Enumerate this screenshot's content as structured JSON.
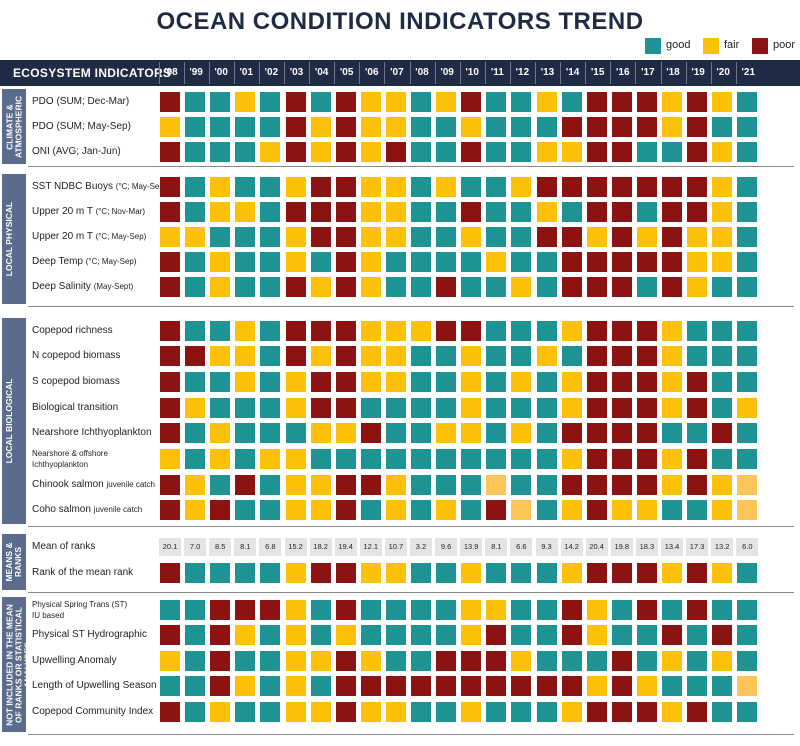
{
  "title": "OCEAN CONDITION INDICATORS TREND",
  "legend": [
    {
      "key": "good",
      "label": "good",
      "color": "#1e9394"
    },
    {
      "key": "fair",
      "label": "fair",
      "color": "#fec109"
    },
    {
      "key": "poor",
      "label": "poor",
      "color": "#8b1412"
    }
  ],
  "header_label": "ECOSYSTEM INDICATORS",
  "colors": {
    "good": "#1e9394",
    "fair": "#fec109",
    "poor": "#8b1412",
    "fair_light": "#fdc557",
    "header": "#1f2a44",
    "group_band": "#5a6b8c",
    "value_cell": "#e4e4e4"
  },
  "chart_data": {
    "type": "heatmap",
    "title": "OCEAN CONDITION INDICATORS TREND",
    "legend_placement": "top-right",
    "categories": [
      "good",
      "fair",
      "poor"
    ],
    "years": [
      "'98",
      "'99",
      "'00",
      "'01",
      "'02",
      "'03",
      "'04",
      "'05",
      "'06",
      "'07",
      "'08",
      "'09",
      "'10",
      "'11",
      "'12",
      "'13",
      "'14",
      "'15",
      "'16",
      "'17",
      "'18",
      "'19",
      "'20",
      "'21"
    ],
    "groups": [
      {
        "name": "CLIMATE & ATMOSPHERIC",
        "rows": [
          {
            "label": "PDO (SUM; Dec-Mar)",
            "sub": "",
            "cells": [
              "poor",
              "good",
              "good",
              "fair",
              "good",
              "poor",
              "good",
              "poor",
              "fair",
              "fair",
              "good",
              "fair",
              "poor",
              "good",
              "good",
              "fair",
              "good",
              "poor",
              "poor",
              "poor",
              "fair",
              "poor",
              "fair",
              "good"
            ]
          },
          {
            "label": "PDO (SUM; May-Sep)",
            "sub": "",
            "cells": [
              "fair",
              "good",
              "good",
              "good",
              "good",
              "poor",
              "fair",
              "poor",
              "fair",
              "fair",
              "good",
              "good",
              "fair",
              "good",
              "good",
              "good",
              "poor",
              "poor",
              "poor",
              "poor",
              "fair",
              "poor",
              "good",
              "good"
            ]
          },
          {
            "label": "ONI (AVG; Jan-Jun)",
            "sub": "",
            "cells": [
              "poor",
              "good",
              "good",
              "good",
              "fair",
              "poor",
              "fair",
              "poor",
              "fair",
              "poor",
              "good",
              "good",
              "poor",
              "good",
              "good",
              "fair",
              "fair",
              "poor",
              "poor",
              "good",
              "good",
              "poor",
              "fair",
              "good"
            ]
          }
        ]
      },
      {
        "name": "LOCAL PHYSICAL",
        "rows": [
          {
            "label": "SST NDBC Buoys",
            "sub": "(°C; May-Sep)",
            "cells": [
              "poor",
              "good",
              "fair",
              "good",
              "good",
              "fair",
              "poor",
              "poor",
              "fair",
              "fair",
              "good",
              "fair",
              "good",
              "good",
              "fair",
              "poor",
              "poor",
              "poor",
              "poor",
              "poor",
              "poor",
              "poor",
              "fair",
              "good"
            ]
          },
          {
            "label": "Upper 20 m T",
            "sub": "(°C; Nov-Mar)",
            "cells": [
              "poor",
              "good",
              "fair",
              "fair",
              "good",
              "poor",
              "poor",
              "poor",
              "fair",
              "fair",
              "good",
              "good",
              "poor",
              "good",
              "good",
              "fair",
              "good",
              "poor",
              "poor",
              "good",
              "poor",
              "poor",
              "fair",
              "good"
            ]
          },
          {
            "label": "Upper 20 m T",
            "sub": "(°C; May-Sep)",
            "cells": [
              "fair",
              "fair",
              "good",
              "good",
              "good",
              "fair",
              "poor",
              "poor",
              "fair",
              "fair",
              "good",
              "good",
              "fair",
              "good",
              "good",
              "poor",
              "poor",
              "fair",
              "poor",
              "fair",
              "poor",
              "fair",
              "fair",
              "good"
            ]
          },
          {
            "label": "Deep Temp",
            "sub": "(°C; May-Sep)",
            "cells": [
              "poor",
              "good",
              "fair",
              "good",
              "good",
              "fair",
              "good",
              "poor",
              "fair",
              "good",
              "good",
              "good",
              "good",
              "fair",
              "good",
              "good",
              "poor",
              "poor",
              "poor",
              "poor",
              "poor",
              "fair",
              "fair",
              "good"
            ]
          },
          {
            "label": "Deep Salinity",
            "sub": "(May-Sept)",
            "cells": [
              "poor",
              "good",
              "fair",
              "good",
              "good",
              "poor",
              "fair",
              "poor",
              "fair",
              "good",
              "good",
              "poor",
              "good",
              "good",
              "fair",
              "good",
              "poor",
              "poor",
              "poor",
              "good",
              "poor",
              "fair",
              "good",
              "good"
            ]
          }
        ]
      },
      {
        "name": "LOCAL BIOLOGICAL",
        "rows": [
          {
            "label": "Copepod richness",
            "sub": "",
            "cells": [
              "poor",
              "good",
              "good",
              "fair",
              "good",
              "poor",
              "poor",
              "poor",
              "fair",
              "fair",
              "fair",
              "poor",
              "poor",
              "good",
              "good",
              "good",
              "fair",
              "poor",
              "poor",
              "poor",
              "fair",
              "good",
              "good",
              "good"
            ]
          },
          {
            "label": "N copepod biomass",
            "sub": "",
            "cells": [
              "poor",
              "poor",
              "fair",
              "fair",
              "good",
              "poor",
              "fair",
              "poor",
              "fair",
              "fair",
              "good",
              "good",
              "fair",
              "good",
              "good",
              "fair",
              "good",
              "poor",
              "poor",
              "poor",
              "fair",
              "good",
              "good",
              "good"
            ]
          },
          {
            "label": "S copepod biomass",
            "sub": "",
            "cells": [
              "poor",
              "good",
              "good",
              "fair",
              "good",
              "fair",
              "poor",
              "poor",
              "fair",
              "fair",
              "good",
              "good",
              "fair",
              "good",
              "fair",
              "good",
              "fair",
              "poor",
              "poor",
              "poor",
              "fair",
              "poor",
              "good",
              "good"
            ]
          },
          {
            "label": "Biological transition",
            "sub": "",
            "cells": [
              "poor",
              "fair",
              "good",
              "good",
              "good",
              "fair",
              "poor",
              "poor",
              "good",
              "good",
              "good",
              "good",
              "fair",
              "good",
              "good",
              "good",
              "fair",
              "poor",
              "poor",
              "poor",
              "fair",
              "poor",
              "good",
              "fair"
            ]
          },
          {
            "label": "Nearshore Ichthyoplankton",
            "sub": "",
            "cells": [
              "poor",
              "good",
              "fair",
              "good",
              "good",
              "good",
              "fair",
              "fair",
              "poor",
              "good",
              "good",
              "fair",
              "fair",
              "good",
              "fair",
              "good",
              "poor",
              "poor",
              "poor",
              "poor",
              "good",
              "good",
              "poor",
              "good"
            ]
          },
          {
            "label": "Nearshore & offshore",
            "sub": "Ichthyoplankton",
            "cells": [
              "fair",
              "good",
              "fair",
              "good",
              "fair",
              "fair",
              "good",
              "good",
              "good",
              "good",
              "good",
              "good",
              "good",
              "good",
              "good",
              "good",
              "fair",
              "poor",
              "poor",
              "poor",
              "fair",
              "poor",
              "good",
              "good"
            ]
          },
          {
            "label": "Chinook salmon",
            "sub": "juvenile catch",
            "cells": [
              "poor",
              "fair",
              "good",
              "poor",
              "good",
              "fair",
              "fair",
              "poor",
              "poor",
              "fair",
              "good",
              "good",
              "good",
              "fair_light",
              "good",
              "good",
              "poor",
              "poor",
              "poor",
              "poor",
              "fair",
              "poor",
              "fair",
              "fair_light"
            ]
          },
          {
            "label": "Coho salmon",
            "sub": "juvenile catch",
            "cells": [
              "poor",
              "fair",
              "poor",
              "good",
              "good",
              "fair",
              "fair",
              "poor",
              "good",
              "fair",
              "good",
              "fair",
              "good",
              "poor",
              "fair_light",
              "good",
              "fair",
              "poor",
              "fair",
              "fair",
              "good",
              "good",
              "fair",
              "fair_light"
            ]
          }
        ]
      },
      {
        "name": "MEANS & RANKS",
        "rows": [
          {
            "label": "Mean of ranks",
            "sub": "",
            "values": [
              "20.1",
              "7.0",
              "8.5",
              "8.1",
              "6.8",
              "15.2",
              "18.2",
              "19.4",
              "12.1",
              "10.7",
              "3.2",
              "9.6",
              "13.9",
              "8.1",
              "6.6",
              "9.3",
              "14.2",
              "20.4",
              "19.8",
              "18.3",
              "13.4",
              "17.3",
              "13.2",
              "6.0"
            ]
          },
          {
            "label": "Rank of the mean rank",
            "sub": "",
            "cells": [
              "poor",
              "good",
              "good",
              "good",
              "good",
              "fair",
              "poor",
              "poor",
              "fair",
              "fair",
              "good",
              "good",
              "fair",
              "good",
              "good",
              "good",
              "fair",
              "poor",
              "poor",
              "poor",
              "fair",
              "poor",
              "fair",
              "good"
            ]
          }
        ]
      },
      {
        "name": "NOT INCLUDED IN THE MEAN OF RANKS OR STATISTICAL ANALYSES",
        "rows": [
          {
            "label": "Physical Spring Trans (ST)",
            "sub": "IU based",
            "cells": [
              "good",
              "good",
              "poor",
              "poor",
              "poor",
              "fair",
              "good",
              "poor",
              "good",
              "good",
              "good",
              "good",
              "fair",
              "fair",
              "good",
              "good",
              "poor",
              "fair",
              "good",
              "poor",
              "good",
              "poor",
              "good",
              "good"
            ]
          },
          {
            "label": "Physical ST Hydrographic",
            "sub": "",
            "cells": [
              "poor",
              "good",
              "poor",
              "fair",
              "good",
              "fair",
              "good",
              "fair",
              "good",
              "good",
              "good",
              "good",
              "fair",
              "poor",
              "good",
              "good",
              "poor",
              "fair",
              "good",
              "good",
              "poor",
              "good",
              "poor",
              "good"
            ]
          },
          {
            "label": "Upwelling Anomaly",
            "sub": "",
            "cells": [
              "fair",
              "good",
              "poor",
              "good",
              "good",
              "fair",
              "fair",
              "poor",
              "fair",
              "good",
              "good",
              "poor",
              "poor",
              "poor",
              "fair",
              "good",
              "good",
              "good",
              "poor",
              "good",
              "fair",
              "good",
              "fair",
              "good"
            ]
          },
          {
            "label": "Length of Upwelling Season",
            "sub": "",
            "cells": [
              "good",
              "good",
              "poor",
              "fair",
              "good",
              "fair",
              "good",
              "poor",
              "poor",
              "poor",
              "poor",
              "poor",
              "poor",
              "poor",
              "poor",
              "poor",
              "poor",
              "fair",
              "poor",
              "fair",
              "good",
              "good",
              "good",
              "fair_light"
            ]
          },
          {
            "label": "Copepod Community Index",
            "sub": "",
            "cells": [
              "poor",
              "good",
              "fair",
              "good",
              "good",
              "fair",
              "fair",
              "poor",
              "fair",
              "fair",
              "good",
              "good",
              "fair",
              "good",
              "good",
              "good",
              "fair",
              "poor",
              "poor",
              "poor",
              "fair",
              "poor",
              "good",
              "good"
            ]
          }
        ]
      }
    ]
  }
}
